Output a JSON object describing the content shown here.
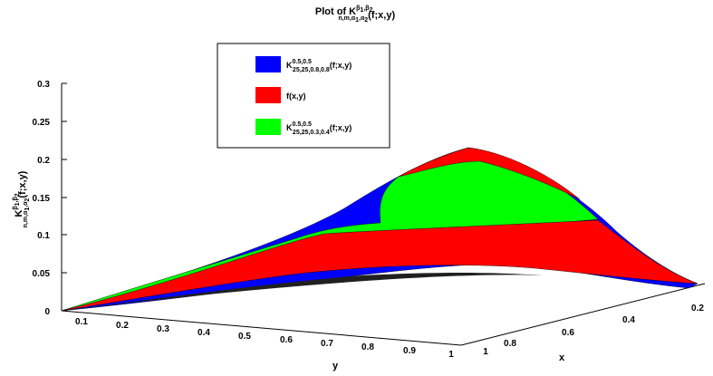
{
  "chart_data": {
    "type": "surface3d",
    "title": {
      "main": "Plot of K",
      "sub": "n,m,α",
      "sub_index": "1",
      "sub_tail": ",α",
      "sub_index2": "2",
      "sup": "β",
      "sup_index": "1",
      "sup_mid": ",β",
      "sup_index2": "2",
      "tail": "(f;x,y)"
    },
    "xlabel": "x",
    "ylabel": "y",
    "zlabel": {
      "main": "K",
      "sub": "n,m,α",
      "sub_index": "1",
      "sub_tail": ",α",
      "sub_index2": "2",
      "sup": "β",
      "sup_index": "1",
      "sup_mid": ",β",
      "sup_index2": "2",
      "tail": "(f;x,y)"
    },
    "x_ticks": [
      "0.2",
      "0.4",
      "0.6",
      "0.8",
      "1"
    ],
    "y_ticks": [
      "0.1",
      "0.2",
      "0.3",
      "0.4",
      "0.5",
      "0.6",
      "0.7",
      "0.8",
      "0.9",
      "1"
    ],
    "z_ticks": [
      "0",
      "0.05",
      "0.1",
      "0.15",
      "0.2",
      "0.25",
      "0.3"
    ],
    "xlim": [
      0,
      1
    ],
    "ylim": [
      0,
      1
    ],
    "zlim": [
      0,
      0.3
    ],
    "grid": false,
    "legend_position": "top-left",
    "series": [
      {
        "name": {
          "main": "K",
          "sub": "25,25,0.8,0.8",
          "sup": "0.5,0.5",
          "tail": "(f;x,y)"
        },
        "color": "#0000ff",
        "peak": 0.213,
        "peak_at": {
          "x": 0.5,
          "y": 0.75
        }
      },
      {
        "name": {
          "main": "f(x,y)"
        },
        "color": "#ff0000",
        "peak": 0.213,
        "peak_at": {
          "x": 0.5,
          "y": 0.75
        }
      },
      {
        "name": {
          "main": "K",
          "sub": "25,25,0.3,0.4",
          "sup": "0.5,0.5",
          "tail": "(f;x,y)"
        },
        "color": "#00ff00",
        "peak": 0.213,
        "peak_at": {
          "x": 0.5,
          "y": 0.75
        }
      }
    ]
  }
}
